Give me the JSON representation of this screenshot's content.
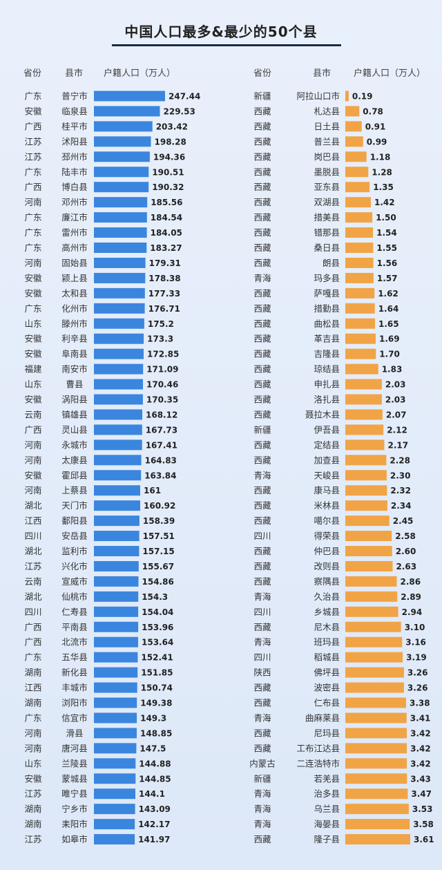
{
  "title": "中国人口最多&最少的50个县",
  "headers": {
    "left": {
      "province": "省份",
      "county": "县市",
      "value": "户籍人口（万人）"
    },
    "right": {
      "province": "省份",
      "county": "县市",
      "value": "户籍人口（万人）"
    }
  },
  "colors": {
    "most": "#3a86de",
    "least": "#f1a446"
  },
  "chart_data": [
    {
      "type": "bar",
      "orientation": "horizontal",
      "ylabel": "户籍人口（万人）",
      "provinces": [
        "广东",
        "安徽",
        "广西",
        "江苏",
        "江苏",
        "广东",
        "广西",
        "河南",
        "广东",
        "广东",
        "广东",
        "河南",
        "安徽",
        "安徽",
        "广东",
        "山东",
        "安徽",
        "安徽",
        "福建",
        "山东",
        "安徽",
        "云南",
        "广西",
        "河南",
        "河南",
        "安徽",
        "河南",
        "湖北",
        "江西",
        "四川",
        "湖北",
        "江苏",
        "云南",
        "湖北",
        "四川",
        "广西",
        "广西",
        "广东",
        "湖南",
        "江西",
        "湖南",
        "广东",
        "河南",
        "河南",
        "山东",
        "安徽",
        "江苏",
        "湖南",
        "湖南",
        "江苏"
      ],
      "categories": [
        "普宁市",
        "临泉县",
        "桂平市",
        "沭阳县",
        "邳州市",
        "陆丰市",
        "博白县",
        "邓州市",
        "廉江市",
        "雷州市",
        "高州市",
        "固始县",
        "颍上县",
        "太和县",
        "化州市",
        "滕州市",
        "利辛县",
        "阜南县",
        "南安市",
        "曹县",
        "涡阳县",
        "镇雄县",
        "灵山县",
        "永城市",
        "太康县",
        "霍邱县",
        "上蔡县",
        "天门市",
        "鄱阳县",
        "安岳县",
        "监利市",
        "兴化市",
        "宣威市",
        "仙桃市",
        "仁寿县",
        "平南县",
        "北流市",
        "五华县",
        "新化县",
        "丰城市",
        "浏阳市",
        "信宜市",
        "滑县",
        "唐河县",
        "兰陵县",
        "蒙城县",
        "睢宁县",
        "宁乡市",
        "耒阳市",
        "如皋市"
      ],
      "value_labels": [
        "247.44",
        "229.53",
        "203.42",
        "198.28",
        "194.36",
        "190.51",
        "190.32",
        "185.56",
        "184.54",
        "184.05",
        "183.27",
        "179.31",
        "178.38",
        "177.33",
        "176.71",
        "175.2",
        "173.3",
        "172.85",
        "171.09",
        "170.46",
        "170.35",
        "168.12",
        "167.73",
        "167.41",
        "164.83",
        "163.84",
        "161",
        "160.92",
        "158.39",
        "157.51",
        "157.15",
        "155.67",
        "154.86",
        "154.3",
        "154.04",
        "153.96",
        "153.64",
        "152.41",
        "151.85",
        "150.74",
        "149.38",
        "149.3",
        "148.85",
        "147.5",
        "144.88",
        "144.85",
        "144.1",
        "143.09",
        "142.17",
        "141.97"
      ],
      "values": [
        247.44,
        229.53,
        203.42,
        198.28,
        194.36,
        190.51,
        190.32,
        185.56,
        184.54,
        184.05,
        183.27,
        179.31,
        178.38,
        177.33,
        176.71,
        175.2,
        173.3,
        172.85,
        171.09,
        170.46,
        170.35,
        168.12,
        167.73,
        167.41,
        164.83,
        163.84,
        161,
        160.92,
        158.39,
        157.51,
        157.15,
        155.67,
        154.86,
        154.3,
        154.04,
        153.96,
        153.64,
        152.41,
        151.85,
        150.74,
        149.38,
        149.3,
        148.85,
        147.5,
        144.88,
        144.85,
        144.1,
        143.09,
        142.17,
        141.97
      ]
    },
    {
      "type": "bar",
      "orientation": "horizontal",
      "ylabel": "户籍人口（万人）",
      "provinces": [
        "新疆",
        "西藏",
        "西藏",
        "西藏",
        "西藏",
        "西藏",
        "西藏",
        "西藏",
        "西藏",
        "西藏",
        "西藏",
        "西藏",
        "青海",
        "西藏",
        "西藏",
        "西藏",
        "西藏",
        "西藏",
        "西藏",
        "西藏",
        "西藏",
        "西藏",
        "新疆",
        "西藏",
        "西藏",
        "青海",
        "西藏",
        "西藏",
        "西藏",
        "四川",
        "西藏",
        "西藏",
        "西藏",
        "青海",
        "四川",
        "西藏",
        "青海",
        "四川",
        "陕西",
        "西藏",
        "西藏",
        "青海",
        "西藏",
        "西藏",
        "内蒙古",
        "新疆",
        "青海",
        "青海",
        "青海",
        "西藏"
      ],
      "categories": [
        "阿拉山口市",
        "札达县",
        "日土县",
        "普兰县",
        "岗巴县",
        "墨脱县",
        "亚东县",
        "双湖县",
        "措美县",
        "错那县",
        "桑日县",
        "朗县",
        "玛多县",
        "萨嘎县",
        "措勤县",
        "曲松县",
        "革吉县",
        "吉隆县",
        "琼结县",
        "申扎县",
        "洛扎县",
        "聂拉木县",
        "伊吾县",
        "定结县",
        "加查县",
        "天峻县",
        "康马县",
        "米林县",
        "噶尔县",
        "得荣县",
        "仲巴县",
        "改则县",
        "察隅县",
        "久治县",
        "乡城县",
        "尼木县",
        "班玛县",
        "稻城县",
        "佛坪县",
        "波密县",
        "仁布县",
        "曲麻莱县",
        "尼玛县",
        "工布江达县",
        "二连浩特市",
        "若羌县",
        "治多县",
        "乌兰县",
        "海晏县",
        "隆子县"
      ],
      "value_labels": [
        "0.19",
        "0.78",
        "0.91",
        "0.99",
        "1.18",
        "1.28",
        "1.35",
        "1.42",
        "1.50",
        "1.54",
        "1.55",
        "1.56",
        "1.57",
        "1.62",
        "1.64",
        "1.65",
        "1.69",
        "1.70",
        "1.83",
        "2.03",
        "2.03",
        "2.07",
        "2.12",
        "2.17",
        "2.28",
        "2.30",
        "2.32",
        "2.34",
        "2.45",
        "2.58",
        "2.60",
        "2.63",
        "2.86",
        "2.89",
        "2.94",
        "3.10",
        "3.16",
        "3.19",
        "3.26",
        "3.26",
        "3.38",
        "3.41",
        "3.42",
        "3.42",
        "3.42",
        "3.43",
        "3.47",
        "3.53",
        "3.58",
        "3.61"
      ],
      "values": [
        0.19,
        0.78,
        0.91,
        0.99,
        1.18,
        1.28,
        1.35,
        1.42,
        1.5,
        1.54,
        1.55,
        1.56,
        1.57,
        1.62,
        1.64,
        1.65,
        1.69,
        1.7,
        1.83,
        2.03,
        2.03,
        2.07,
        2.12,
        2.17,
        2.28,
        2.3,
        2.32,
        2.34,
        2.45,
        2.58,
        2.6,
        2.63,
        2.86,
        2.89,
        2.94,
        3.1,
        3.16,
        3.19,
        3.26,
        3.26,
        3.38,
        3.41,
        3.42,
        3.42,
        3.42,
        3.43,
        3.47,
        3.53,
        3.58,
        3.61
      ]
    }
  ]
}
